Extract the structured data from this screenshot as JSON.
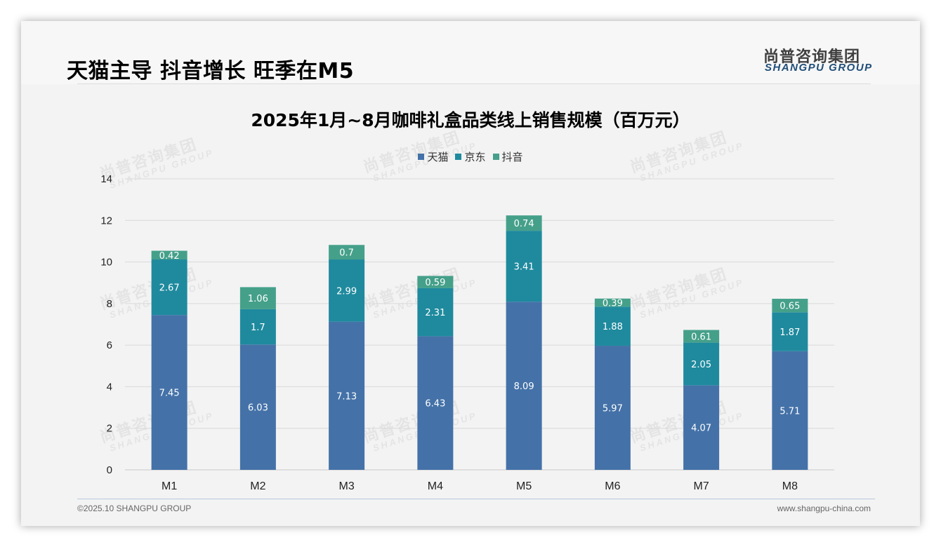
{
  "header": {
    "title": "天猫主导 抖音增长 旺季在M5",
    "logo_cn": "尚普咨询集团",
    "logo_en": "SHANGPU GROUP"
  },
  "watermark": {
    "cn": "尚普咨询集团",
    "en": "SHANGPU GROUP"
  },
  "footer": {
    "copyright": "©2025.10 SHANGPU GROUP",
    "website": "www.shangpu-china.com"
  },
  "colors": {
    "tmall": "#4472a8",
    "jd": "#1f8a9e",
    "douyin": "#45a08a"
  },
  "chart_data": {
    "type": "bar",
    "stacked": true,
    "title": "2025年1月~8月咖啡礼盒品类线上销售规模（百万元）",
    "xlabel": "",
    "ylabel": "",
    "categories": [
      "M1",
      "M2",
      "M3",
      "M4",
      "M5",
      "M6",
      "M7",
      "M8"
    ],
    "series": [
      {
        "name": "天猫",
        "color": "#4472a8",
        "values": [
          7.45,
          6.03,
          7.13,
          6.43,
          8.09,
          5.97,
          4.07,
          5.71
        ]
      },
      {
        "name": "京东",
        "color": "#1f8a9e",
        "values": [
          2.67,
          1.7,
          2.99,
          2.31,
          3.41,
          1.88,
          2.05,
          1.87
        ]
      },
      {
        "name": "抖音",
        "color": "#45a08a",
        "values": [
          0.42,
          1.06,
          0.7,
          0.59,
          0.74,
          0.39,
          0.61,
          0.65
        ]
      }
    ],
    "ylim": [
      0,
      14
    ],
    "yticks": [
      0,
      2,
      4,
      6,
      8,
      10,
      12,
      14
    ],
    "grid": true,
    "legend": "top-center"
  }
}
